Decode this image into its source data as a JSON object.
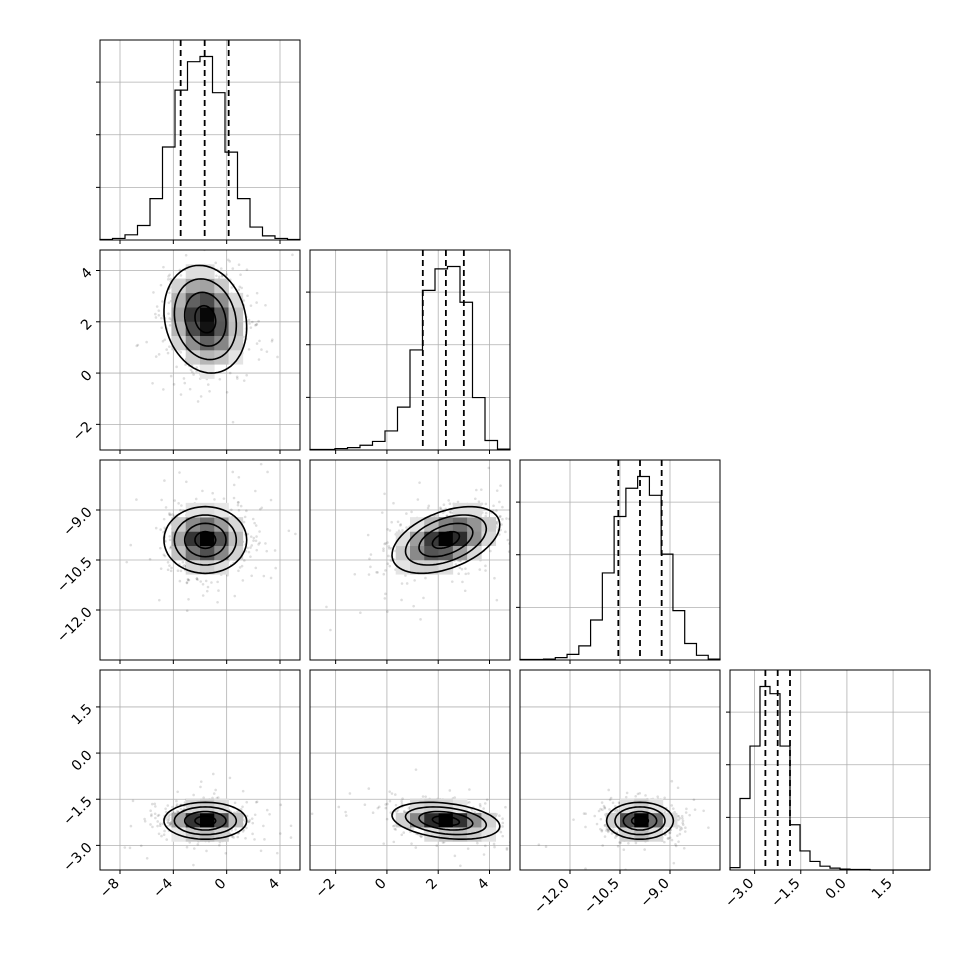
{
  "chart_data": {
    "type": "corner",
    "grid": true,
    "parameters": [
      {
        "id": "p0",
        "axis_range": [
          -9.5,
          5.5
        ],
        "ticks": [
          -8,
          -4,
          0,
          4
        ],
        "tick_labels": [
          "−8",
          "−4",
          "0",
          "4"
        ],
        "quantiles": [
          -3.45,
          -1.65,
          0.15
        ],
        "histogram": {
          "counts": [
            1,
            3,
            10,
            28,
            80,
            180,
            290,
            345,
            355,
            285,
            170,
            80,
            25,
            8,
            3,
            1
          ]
        }
      },
      {
        "id": "p1",
        "axis_range": [
          -3.0,
          4.8
        ],
        "ticks": [
          -2,
          0,
          2,
          4
        ],
        "tick_labels": [
          "−2",
          "0",
          "2",
          "4"
        ],
        "quantiles": [
          1.4,
          2.3,
          3.0
        ],
        "histogram": {
          "counts": [
            1,
            1,
            3,
            5,
            10,
            18,
            40,
            90,
            210,
            335,
            380,
            385,
            310,
            110,
            20,
            2
          ]
        }
      },
      {
        "id": "p2",
        "axis_range": [
          -13.5,
          -7.5
        ],
        "ticks": [
          -12.0,
          -10.5,
          -9.0
        ],
        "tick_labels": [
          "−12.0",
          "−10.5",
          "−9.0"
        ],
        "quantiles": [
          -10.55,
          -9.9,
          -9.25
        ],
        "histogram": {
          "counts": [
            1,
            1,
            2,
            5,
            12,
            30,
            85,
            185,
            305,
            365,
            390,
            350,
            225,
            105,
            35,
            10,
            2
          ]
        }
      },
      {
        "id": "p3",
        "axis_range": [
          -3.8,
          2.7
        ],
        "ticks": [
          -3.0,
          -1.5,
          0.0,
          1.5
        ],
        "tick_labels": [
          "−3.0",
          "−1.5",
          "0.0",
          "1.5"
        ],
        "quantiles": [
          -2.65,
          -2.25,
          -1.85
        ],
        "histogram": {
          "counts": [
            5,
            150,
            260,
            385,
            370,
            260,
            95,
            40,
            18,
            8,
            4,
            2,
            1,
            1,
            0,
            0,
            0,
            0,
            0,
            0
          ]
        }
      }
    ],
    "pairs": [
      {
        "x": "p0",
        "y": "p1",
        "center": [
          -1.6,
          2.1
        ],
        "sd": [
          1.55,
          1.05
        ],
        "rho": -0.15
      },
      {
        "x": "p0",
        "y": "p2",
        "center": [
          -1.6,
          -9.9
        ],
        "sd": [
          1.55,
          0.5
        ],
        "rho": 0.0
      },
      {
        "x": "p1",
        "y": "p2",
        "center": [
          2.3,
          -9.9
        ],
        "sd": [
          1.05,
          0.5
        ],
        "rho": 0.45
      },
      {
        "x": "p0",
        "y": "p3",
        "center": [
          -1.6,
          -2.2
        ],
        "sd": [
          1.55,
          0.3
        ],
        "rho": 0.0
      },
      {
        "x": "p1",
        "y": "p3",
        "center": [
          2.3,
          -2.2
        ],
        "sd": [
          1.05,
          0.3
        ],
        "rho": -0.3
      },
      {
        "x": "p2",
        "y": "p3",
        "center": [
          -9.9,
          -2.2
        ],
        "sd": [
          0.5,
          0.3
        ],
        "rho": 0.0
      }
    ]
  }
}
